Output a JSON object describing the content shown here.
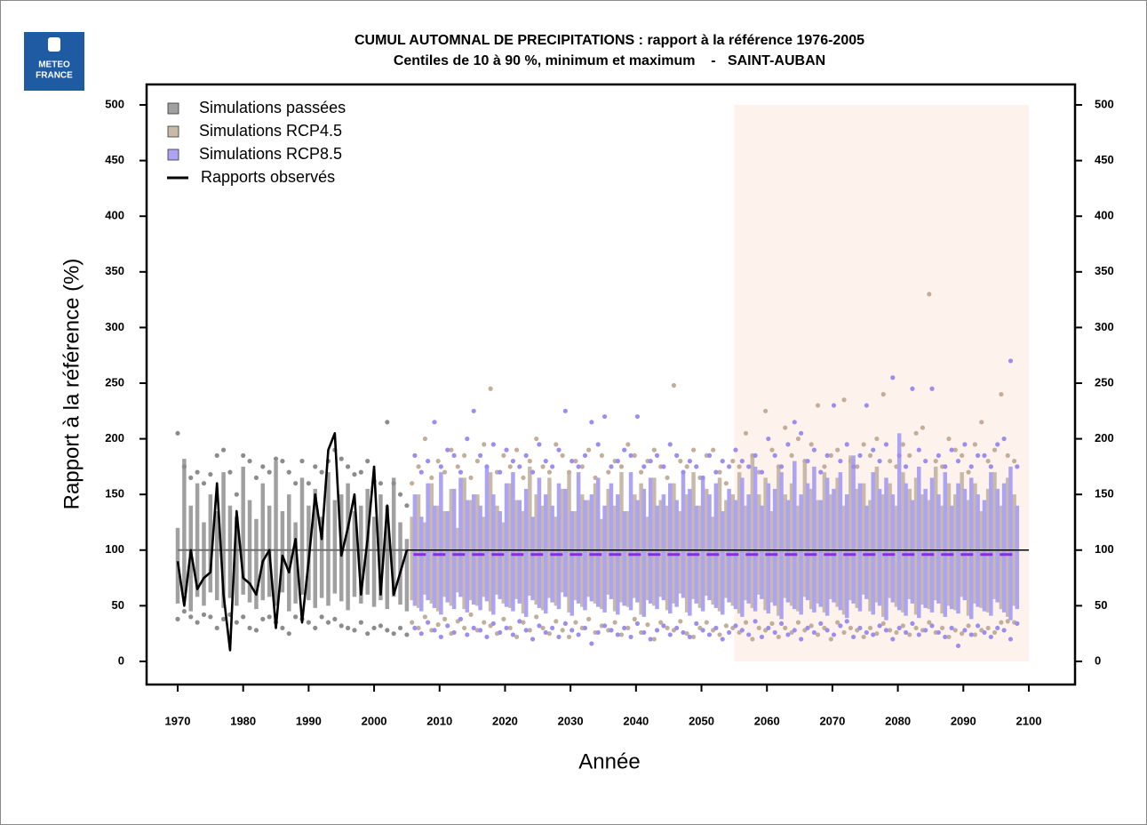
{
  "logo": {
    "line1": "METEO",
    "line2": "FRANCE"
  },
  "chart_data": {
    "type": "range",
    "title": "CUMUL AUTOMNAL DE PRECIPITATIONS : rapport à la référence 1976-2005",
    "subtitle": "Centiles de 10 à 90 %, minimum et maximum    -   SAINT-AUBAN",
    "xlabel": "Année",
    "ylabel": "Rapport à la référence (%)",
    "xlim": [
      1965.25,
      2107.06
    ],
    "ylim": [
      -20.8,
      518.4
    ],
    "xticks": [
      1970,
      1980,
      1990,
      2000,
      2010,
      2020,
      2030,
      2040,
      2050,
      2060,
      2070,
      2080,
      2090,
      2100
    ],
    "yticks": [
      0,
      50,
      100,
      150,
      200,
      250,
      300,
      350,
      400,
      450,
      500
    ],
    "highlight": {
      "xlim": [
        2055,
        2100
      ],
      "color": "#fdf3ec"
    },
    "reference": 100,
    "series": [
      {
        "name": "Simulations passées",
        "color": "#a0a0a0",
        "point_color": "#8c8c8c",
        "median": 100,
        "median_color": "#707070",
        "x": [
          1970,
          1971,
          1972,
          1973,
          1974,
          1975,
          1976,
          1977,
          1978,
          1979,
          1980,
          1981,
          1982,
          1983,
          1984,
          1985,
          1986,
          1987,
          1988,
          1989,
          1990,
          1991,
          1992,
          1993,
          1994,
          1995,
          1996,
          1997,
          1998,
          1999,
          2000,
          2001,
          2002,
          2003,
          2004,
          2005
        ],
        "low": [
          52,
          60,
          45,
          58,
          50,
          62,
          55,
          48,
          57,
          50,
          60,
          53,
          47,
          55,
          58,
          50,
          62,
          45,
          52,
          60,
          55,
          48,
          57,
          50,
          61,
          54,
          46,
          58,
          52,
          60,
          49,
          55,
          47,
          58,
          51,
          45
        ],
        "high": [
          120,
          182,
          140,
          160,
          125,
          150,
          135,
          170,
          140,
          130,
          175,
          145,
          128,
          160,
          140,
          180,
          135,
          150,
          125,
          165,
          140,
          155,
          130,
          170,
          145,
          150,
          160,
          135,
          140,
          155,
          130,
          150,
          140,
          165,
          125,
          110
        ],
        "min": [
          38,
          45,
          40,
          35,
          42,
          40,
          30,
          38,
          42,
          35,
          40,
          30,
          28,
          38,
          40,
          35,
          30,
          25,
          40,
          38,
          35,
          30,
          40,
          35,
          38,
          32,
          30,
          28,
          35,
          25,
          30,
          32,
          28,
          25,
          30,
          24
        ],
        "max": [
          205,
          175,
          165,
          170,
          160,
          168,
          185,
          190,
          170,
          150,
          185,
          180,
          165,
          175,
          170,
          182,
          180,
          170,
          160,
          180,
          160,
          175,
          170,
          180,
          190,
          182,
          175,
          168,
          170,
          180,
          162,
          160,
          215,
          160,
          150,
          140
        ]
      },
      {
        "name": "Simulations RCP4.5",
        "color": "#c8b9a8",
        "point_color": "#c4ae9a",
        "offset": -1.6,
        "x": [
          2006,
          2007,
          2008,
          2009,
          2010,
          2011,
          2012,
          2013,
          2014,
          2015,
          2016,
          2017,
          2018,
          2019,
          2020,
          2021,
          2022,
          2023,
          2024,
          2025,
          2026,
          2027,
          2028,
          2029,
          2030,
          2031,
          2032,
          2033,
          2034,
          2035,
          2036,
          2037,
          2038,
          2039,
          2040,
          2041,
          2042,
          2043,
          2044,
          2045,
          2046,
          2047,
          2048,
          2049,
          2050,
          2051,
          2052,
          2053,
          2054,
          2055,
          2056,
          2057,
          2058,
          2059,
          2060,
          2061,
          2062,
          2063,
          2064,
          2065,
          2066,
          2067,
          2068,
          2069,
          2070,
          2071,
          2072,
          2073,
          2074,
          2075,
          2076,
          2077,
          2078,
          2079,
          2080,
          2081,
          2082,
          2083,
          2084,
          2085,
          2086,
          2087,
          2088,
          2089,
          2090,
          2091,
          2092,
          2093,
          2094,
          2095,
          2096,
          2097,
          2098
        ],
        "low": [
          55,
          48,
          60,
          52,
          45,
          58,
          50,
          62,
          47,
          55,
          50,
          58,
          45,
          60,
          52,
          48,
          56,
          43,
          59,
          51,
          46,
          57,
          50,
          62,
          44,
          55,
          49,
          58,
          52,
          47,
          60,
          45,
          53,
          49,
          57,
          42,
          55,
          50,
          58,
          46,
          52,
          61,
          44,
          56,
          48,
          59,
          51,
          45,
          57,
          50,
          43,
          55,
          48,
          60,
          46,
          53,
          41,
          57,
          50,
          45,
          58,
          47,
          52,
          44,
          56,
          49,
          42,
          55,
          48,
          60,
          45,
          53,
          40,
          57,
          49,
          44,
          56,
          42,
          51,
          47,
          55,
          43,
          50,
          46,
          58,
          41,
          52,
          48,
          44,
          56,
          47,
          40,
          50
        ],
        "high": [
          130,
          150,
          125,
          160,
          140,
          135,
          155,
          120,
          165,
          145,
          150,
          130,
          170,
          140,
          125,
          160,
          145,
          135,
          175,
          150,
          140,
          165,
          130,
          155,
          170,
          135,
          150,
          145,
          160,
          128,
          155,
          140,
          170,
          135,
          150,
          160,
          130,
          165,
          145,
          140,
          160,
          135,
          150,
          170,
          140,
          155,
          130,
          165,
          145,
          150,
          170,
          140,
          185,
          150,
          165,
          135,
          175,
          150,
          160,
          140,
          180,
          155,
          145,
          170,
          150,
          165,
          140,
          185,
          155,
          160,
          145,
          175,
          150,
          160,
          140,
          170,
          155,
          165,
          150,
          145,
          175,
          140,
          160,
          150,
          170,
          145,
          160,
          135,
          155,
          170,
          140,
          165,
          150
        ],
        "min": [
          35,
          30,
          40,
          28,
          33,
          38,
          25,
          36,
          30,
          42,
          28,
          35,
          32,
          25,
          38,
          30,
          22,
          35,
          28,
          40,
          30,
          25,
          36,
          28,
          22,
          35,
          30,
          38,
          26,
          32,
          28,
          35,
          24,
          30,
          38,
          26,
          33,
          20,
          35,
          30,
          28,
          36,
          25,
          22,
          30,
          35,
          28,
          24,
          32,
          30,
          26,
          35,
          20,
          30,
          28,
          34,
          22,
          30,
          26,
          35,
          28,
          32,
          24,
          30,
          20,
          35,
          26,
          30,
          28,
          22,
          30,
          25,
          34,
          28,
          26,
          32,
          24,
          30,
          28,
          35,
          26,
          30,
          22,
          28,
          25,
          32,
          24,
          28,
          30,
          26,
          35,
          36,
          35
        ],
        "max": [
          160,
          175,
          200,
          165,
          180,
          170,
          190,
          175,
          185,
          165,
          180,
          195,
          245,
          170,
          185,
          175,
          190,
          165,
          180,
          200,
          175,
          170,
          195,
          185,
          170,
          180,
          175,
          190,
          165,
          185,
          170,
          180,
          175,
          195,
          185,
          170,
          180,
          190,
          175,
          165,
          248,
          180,
          175,
          190,
          165,
          185,
          190,
          170,
          160,
          180,
          175,
          205,
          185,
          170,
          225,
          190,
          175,
          210,
          185,
          200,
          180,
          195,
          230,
          175,
          185,
          190,
          235,
          180,
          175,
          195,
          185,
          200,
          240,
          180,
          175,
          195,
          185,
          205,
          210,
          330,
          180,
          175,
          200,
          190,
          185,
          170,
          195,
          215,
          180,
          190,
          240,
          185,
          180
        ]
      },
      {
        "name": "Simulations RCP8.5",
        "color": "#aca3f2",
        "point_color": "#9c8df0",
        "offset": 1.6,
        "median": 96,
        "median_color": "#8a2be2",
        "x": [
          2006,
          2007,
          2008,
          2009,
          2010,
          2011,
          2012,
          2013,
          2014,
          2015,
          2016,
          2017,
          2018,
          2019,
          2020,
          2021,
          2022,
          2023,
          2024,
          2025,
          2026,
          2027,
          2028,
          2029,
          2030,
          2031,
          2032,
          2033,
          2034,
          2035,
          2036,
          2037,
          2038,
          2039,
          2040,
          2041,
          2042,
          2043,
          2044,
          2045,
          2046,
          2047,
          2048,
          2049,
          2050,
          2051,
          2052,
          2053,
          2054,
          2055,
          2056,
          2057,
          2058,
          2059,
          2060,
          2061,
          2062,
          2063,
          2064,
          2065,
          2066,
          2067,
          2068,
          2069,
          2070,
          2071,
          2072,
          2073,
          2074,
          2075,
          2076,
          2077,
          2078,
          2079,
          2080,
          2081,
          2082,
          2083,
          2084,
          2085,
          2086,
          2087,
          2088,
          2089,
          2090,
          2091,
          2092,
          2093,
          2094,
          2095,
          2096,
          2097,
          2098
        ],
        "low": [
          50,
          45,
          55,
          48,
          42,
          53,
          47,
          58,
          44,
          51,
          46,
          54,
          42,
          56,
          49,
          45,
          52,
          40,
          55,
          48,
          43,
          53,
          47,
          58,
          41,
          52,
          46,
          54,
          49,
          44,
          56,
          42,
          50,
          46,
          53,
          40,
          52,
          47,
          55,
          43,
          49,
          57,
          41,
          52,
          45,
          55,
          48,
          42,
          53,
          47,
          40,
          52,
          45,
          56,
          43,
          50,
          38,
          53,
          47,
          42,
          55,
          44,
          49,
          41,
          53,
          46,
          39,
          52,
          45,
          56,
          42,
          50,
          37,
          53,
          46,
          41,
          52,
          39,
          48,
          44,
          52,
          40,
          47,
          43,
          55,
          38,
          49,
          45,
          41,
          53,
          44,
          37,
          47
        ],
        "high": [
          150,
          130,
          160,
          140,
          170,
          135,
          155,
          165,
          145,
          150,
          140,
          175,
          150,
          135,
          160,
          170,
          145,
          155,
          130,
          165,
          150,
          140,
          160,
          155,
          135,
          170,
          145,
          150,
          165,
          140,
          160,
          150,
          135,
          170,
          145,
          155,
          165,
          140,
          150,
          160,
          145,
          170,
          155,
          140,
          165,
          150,
          160,
          135,
          155,
          145,
          165,
          150,
          175,
          140,
          160,
          155,
          170,
          145,
          180,
          150,
          160,
          175,
          145,
          165,
          155,
          170,
          150,
          185,
          160,
          140,
          170,
          155,
          165,
          150,
          205,
          160,
          145,
          175,
          155,
          165,
          150,
          170,
          140,
          160,
          155,
          165,
          150,
          145,
          170,
          155,
          160,
          175,
          140
        ],
        "min": [
          30,
          25,
          35,
          28,
          22,
          32,
          26,
          38,
          24,
          30,
          28,
          22,
          34,
          26,
          30,
          24,
          36,
          28,
          20,
          32,
          26,
          30,
          22,
          34,
          28,
          24,
          30,
          16,
          26,
          32,
          28,
          24,
          30,
          22,
          34,
          26,
          20,
          28,
          32,
          24,
          30,
          26,
          22,
          34,
          28,
          24,
          30,
          20,
          26,
          32,
          28,
          24,
          36,
          22,
          30,
          26,
          34,
          24,
          28,
          20,
          30,
          26,
          34,
          28,
          24,
          32,
          36,
          22,
          30,
          26,
          24,
          32,
          28,
          20,
          30,
          26,
          34,
          24,
          28,
          32,
          26,
          22,
          30,
          14,
          28,
          24,
          32,
          26,
          22,
          30,
          28,
          20,
          34
        ],
        "max": [
          185,
          170,
          180,
          215,
          175,
          190,
          185,
          170,
          200,
          225,
          185,
          175,
          195,
          170,
          190,
          180,
          175,
          185,
          170,
          195,
          180,
          175,
          190,
          225,
          180,
          175,
          185,
          215,
          195,
          220,
          175,
          180,
          190,
          185,
          220,
          175,
          180,
          185,
          175,
          195,
          185,
          170,
          180,
          175,
          165,
          185,
          170,
          180,
          175,
          190,
          180,
          175,
          185,
          170,
          200,
          185,
          175,
          195,
          215,
          205,
          180,
          190,
          170,
          185,
          230,
          180,
          195,
          175,
          185,
          230,
          190,
          180,
          195,
          255,
          185,
          175,
          245,
          190,
          180,
          245,
          185,
          175,
          190,
          180,
          195,
          175,
          185,
          185,
          175,
          195,
          200,
          270,
          175
        ]
      },
      {
        "name": "Rapports observés",
        "kind": "line",
        "color": "#000000",
        "x": [
          1970,
          1971,
          1972,
          1973,
          1974,
          1975,
          1976,
          1977,
          1978,
          1979,
          1980,
          1981,
          1982,
          1983,
          1984,
          1985,
          1986,
          1987,
          1988,
          1989,
          1990,
          1991,
          1992,
          1993,
          1994,
          1995,
          1996,
          1997,
          1998,
          1999,
          2000,
          2001,
          2002,
          2003,
          2004,
          2005
        ],
        "values": [
          90,
          50,
          100,
          65,
          75,
          80,
          160,
          60,
          10,
          135,
          75,
          70,
          60,
          90,
          100,
          30,
          95,
          80,
          110,
          35,
          90,
          150,
          110,
          190,
          205,
          95,
          120,
          150,
          60,
          110,
          175,
          60,
          140,
          60,
          80,
          100
        ]
      }
    ]
  }
}
